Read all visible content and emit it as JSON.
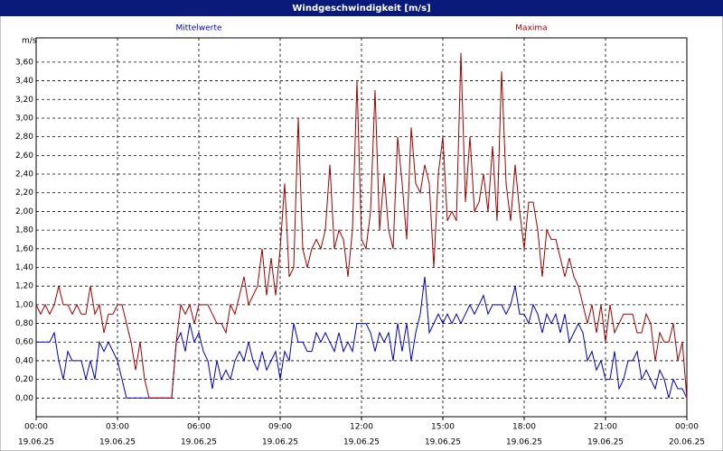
{
  "chart_data": {
    "type": "line",
    "title": "Windgeschwindigkeit [m/s]",
    "y_label": "m/s",
    "x": [
      0,
      10,
      20,
      30,
      40,
      50,
      60,
      70,
      80,
      90,
      100,
      110,
      120,
      130,
      140,
      150,
      160,
      170,
      180,
      190,
      200,
      210,
      220,
      230,
      240,
      250,
      260,
      270,
      280,
      290,
      300,
      310,
      320,
      330,
      340,
      350,
      360,
      370,
      380,
      390,
      400,
      410,
      420,
      430,
      440,
      450,
      460,
      470,
      480,
      490,
      500,
      510,
      520,
      530,
      540,
      550,
      560,
      570,
      580,
      590,
      600,
      610,
      620,
      630,
      640,
      650,
      660,
      670,
      680,
      690,
      700,
      710,
      720,
      730,
      740,
      750,
      760,
      770,
      780,
      790,
      800,
      810,
      820,
      830,
      840,
      850,
      860,
      870,
      880,
      890,
      900,
      910,
      920,
      930,
      940,
      950,
      960,
      970,
      980,
      990,
      1000,
      1010,
      1020,
      1030,
      1040,
      1050,
      1060,
      1070,
      1080,
      1090,
      1100,
      1110,
      1120,
      1130,
      1140,
      1150,
      1160,
      1170,
      1180,
      1190,
      1200,
      1210,
      1220,
      1230,
      1240,
      1250,
      1260,
      1270,
      1280,
      1290,
      1300,
      1310,
      1320,
      1330,
      1340,
      1350,
      1360,
      1370,
      1380,
      1390,
      1400,
      1410,
      1420,
      1430,
      1440
    ],
    "series": [
      {
        "name": "Mittelwerte",
        "color": "#0000c0",
        "values": [
          0.6,
          0.6,
          0.6,
          0.6,
          0.7,
          0.4,
          0.2,
          0.5,
          0.4,
          0.4,
          0.4,
          0.2,
          0.4,
          0.2,
          0.6,
          0.5,
          0.6,
          0.5,
          0.4,
          0.2,
          0.0,
          0.0,
          0.0,
          0.0,
          0.0,
          0.0,
          0.0,
          0.0,
          0.0,
          0.0,
          0.0,
          0.6,
          0.7,
          0.5,
          0.8,
          0.6,
          0.7,
          0.5,
          0.4,
          0.1,
          0.4,
          0.2,
          0.3,
          0.2,
          0.4,
          0.5,
          0.4,
          0.6,
          0.4,
          0.3,
          0.5,
          0.3,
          0.4,
          0.5,
          0.2,
          0.5,
          0.4,
          0.8,
          0.6,
          0.6,
          0.5,
          0.5,
          0.7,
          0.6,
          0.7,
          0.6,
          0.5,
          0.7,
          0.5,
          0.6,
          0.5,
          0.8,
          0.8,
          0.8,
          0.7,
          0.5,
          0.7,
          0.6,
          0.7,
          0.4,
          0.8,
          0.5,
          0.8,
          0.4,
          0.7,
          0.9,
          1.3,
          0.7,
          0.8,
          0.9,
          0.8,
          0.9,
          0.8,
          0.9,
          0.8,
          0.9,
          1.0,
          0.9,
          1.0,
          1.1,
          0.9,
          1.0,
          1.0,
          1.0,
          0.9,
          1.0,
          1.2,
          0.9,
          0.9,
          0.8,
          1.0,
          0.9,
          0.7,
          0.9,
          0.8,
          0.9,
          0.7,
          0.9,
          0.6,
          0.7,
          0.8,
          0.7,
          0.4,
          0.5,
          0.3,
          0.4,
          0.2,
          0.2,
          0.5,
          0.1,
          0.2,
          0.4,
          0.4,
          0.5,
          0.2,
          0.3,
          0.2,
          0.1,
          0.3,
          0.2,
          0.0,
          0.2,
          0.1,
          0.1,
          0.0
        ]
      },
      {
        "name": "Maxima",
        "color": "#a00000",
        "values": [
          1.0,
          0.9,
          1.0,
          0.9,
          1.0,
          1.2,
          1.0,
          1.0,
          0.9,
          1.0,
          0.9,
          0.9,
          1.2,
          0.9,
          1.0,
          0.7,
          0.9,
          0.9,
          1.0,
          1.0,
          0.8,
          0.6,
          0.3,
          0.6,
          0.2,
          0.0,
          0.0,
          0.0,
          0.0,
          0.0,
          0.0,
          0.6,
          1.0,
          0.9,
          1.0,
          0.8,
          1.0,
          1.0,
          1.0,
          0.9,
          0.8,
          0.8,
          0.7,
          1.0,
          0.9,
          1.1,
          1.3,
          1.0,
          1.1,
          1.2,
          1.6,
          1.1,
          1.5,
          1.1,
          1.6,
          2.3,
          1.3,
          1.4,
          3.0,
          1.6,
          1.4,
          1.6,
          1.7,
          1.6,
          1.8,
          2.5,
          1.6,
          1.8,
          1.7,
          1.3,
          1.8,
          3.4,
          1.7,
          1.6,
          2.0,
          3.3,
          1.8,
          2.4,
          1.8,
          1.6,
          2.8,
          2.3,
          1.7,
          2.9,
          2.3,
          2.2,
          2.5,
          2.3,
          1.4,
          2.4,
          2.8,
          1.9,
          2.0,
          1.9,
          3.7,
          2.1,
          2.8,
          2.0,
          2.1,
          2.4,
          2.0,
          2.7,
          1.9,
          3.5,
          2.3,
          1.9,
          2.5,
          2.0,
          1.6,
          2.1,
          2.1,
          1.8,
          1.3,
          1.8,
          1.7,
          1.7,
          1.5,
          1.3,
          1.5,
          1.3,
          1.2,
          1.0,
          0.8,
          1.0,
          0.7,
          1.0,
          0.6,
          1.0,
          0.7,
          0.8,
          0.9,
          0.9,
          0.9,
          0.7,
          0.7,
          0.9,
          0.8,
          0.4,
          0.7,
          0.6,
          0.6,
          0.8,
          0.4,
          0.6,
          0.0
        ]
      }
    ],
    "xlim": [
      0,
      1440
    ],
    "xticks": [
      {
        "value": 0,
        "label": "00:00"
      },
      {
        "value": 180,
        "label": "03:00"
      },
      {
        "value": 360,
        "label": "06:00"
      },
      {
        "value": 540,
        "label": "09:00"
      },
      {
        "value": 720,
        "label": "12:00"
      },
      {
        "value": 900,
        "label": "15:00"
      },
      {
        "value": 1080,
        "label": "18:00"
      },
      {
        "value": 1260,
        "label": "21:00"
      },
      {
        "value": 1440,
        "label": "00:00"
      }
    ],
    "xtick_dates": [
      "19.06.25",
      "19.06.25",
      "19.06.25",
      "19.06.25",
      "19.06.25",
      "19.06.25",
      "19.06.25",
      "19.06.25",
      "20.06.25"
    ],
    "ylim": [
      -0.2,
      3.86
    ],
    "yticks": [
      {
        "value": 0,
        "label": "0,00"
      },
      {
        "value": 0.2,
        "label": "0,20"
      },
      {
        "value": 0.4,
        "label": "0,40"
      },
      {
        "value": 0.6,
        "label": "0,60"
      },
      {
        "value": 0.8,
        "label": "0,80"
      },
      {
        "value": 1,
        "label": "1,00"
      },
      {
        "value": 1.2,
        "label": "1,20"
      },
      {
        "value": 1.4,
        "label": "1,40"
      },
      {
        "value": 1.6,
        "label": "1,60"
      },
      {
        "value": 1.8,
        "label": "1,80"
      },
      {
        "value": 2,
        "label": "2,00"
      },
      {
        "value": 2.2,
        "label": "2,20"
      },
      {
        "value": 2.4,
        "label": "2,40"
      },
      {
        "value": 2.6,
        "label": "2,60"
      },
      {
        "value": 2.8,
        "label": "2,80"
      },
      {
        "value": 3,
        "label": "3,00"
      },
      {
        "value": 3.2,
        "label": "3,20"
      },
      {
        "value": 3.4,
        "label": "3,40"
      },
      {
        "value": 3.6,
        "label": "3,60"
      }
    ],
    "grid": true
  }
}
